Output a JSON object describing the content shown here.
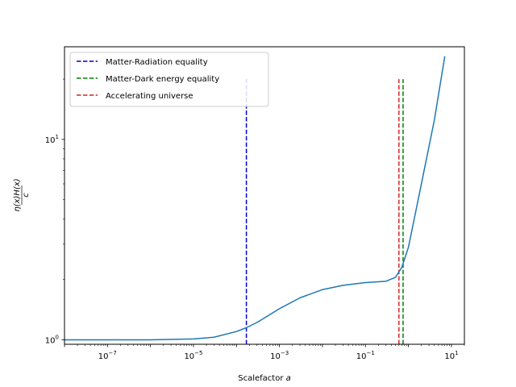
{
  "chart_data": {
    "type": "line",
    "title": "",
    "xlabel": "Scalefactor",
    "xlabel_var": "a",
    "ylabel": "η(x)H(x)",
    "ylabel_den": "c",
    "xscale": "log",
    "yscale": "log",
    "xlim": [
      1e-08,
      20
    ],
    "ylim": [
      0.95,
      29
    ],
    "grid": false,
    "legend_position": "top-left",
    "x_ticks": [
      {
        "value": 1e-07,
        "base": "10",
        "exp": "−7"
      },
      {
        "value": 1e-05,
        "base": "10",
        "exp": "−5"
      },
      {
        "value": 0.001,
        "base": "10",
        "exp": "−3"
      },
      {
        "value": 0.1,
        "base": "10",
        "exp": "−1"
      },
      {
        "value": 10,
        "base": "10",
        "exp": "1"
      }
    ],
    "y_ticks": [
      {
        "value": 1,
        "base": "10",
        "exp": "0"
      },
      {
        "value": 10,
        "base": "10",
        "exp": "1"
      }
    ],
    "curve": {
      "color": "#1f77b4",
      "x": [
        1e-08,
        1e-07,
        1e-06,
        1e-05,
        3e-05,
        0.0001,
        0.00017,
        0.0003,
        0.001,
        0.003,
        0.01,
        0.03,
        0.1,
        0.3,
        0.5,
        0.7,
        1.0,
        2.0,
        4.0,
        7.0
      ],
      "y": [
        1.0,
        1.0,
        1.0,
        1.01,
        1.03,
        1.1,
        1.15,
        1.22,
        1.43,
        1.62,
        1.78,
        1.87,
        1.93,
        1.96,
        2.05,
        2.3,
        2.9,
        6.0,
        12.5,
        26.0
      ]
    },
    "vlines": [
      {
        "name": "Matter-Radiation equality",
        "x": 0.00017,
        "color": "#0000cc",
        "y_from": 0.95,
        "y_to": 20
      },
      {
        "name": "Matter-Dark energy equality",
        "x": 0.75,
        "color": "#008000",
        "y_from": 0.95,
        "y_to": 20
      },
      {
        "name": "Accelerating universe",
        "x": 0.6,
        "color": "#d62728",
        "y_from": 0.95,
        "y_to": 20
      }
    ]
  }
}
